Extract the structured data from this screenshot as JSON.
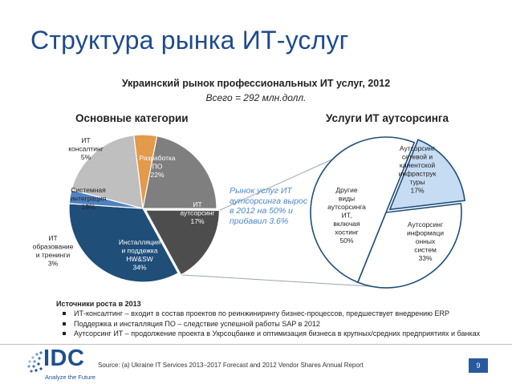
{
  "title": "Структура рынка ИТ-услуг",
  "subtitle": "Украинский рынок профессиональных ИТ услуг, 2012",
  "subtitle2": "Всего = 292 млн.долл.",
  "chart_data": [
    {
      "type": "pie",
      "title": "Основные категории",
      "slices": [
        {
          "label_lines": [
            "Разработка",
            "ПО",
            "22%"
          ],
          "value": 22,
          "color": "#7f7f7f"
        },
        {
          "label_lines": [
            "ИТ",
            "аутсорсинг",
            "17%"
          ],
          "value": 17,
          "color": "#4d4d4d"
        },
        {
          "label_lines": [
            "Инсталляция",
            "и поддежка",
            "HW&SW",
            "34%"
          ],
          "value": 34,
          "color": "#1f4e79"
        },
        {
          "label_lines": [
            "ИТ",
            "образование",
            "и тренинги",
            "3%"
          ],
          "value": 3,
          "color": "#4f81bd"
        },
        {
          "label_lines": [
            "Системная",
            "интеграция",
            "19%"
          ],
          "value": 19,
          "color": "#bfbfbf"
        },
        {
          "label_lines": [
            "ИТ",
            "консалтинг",
            "5%"
          ],
          "value": 5,
          "color": "#e39a4a"
        }
      ]
    },
    {
      "type": "pie",
      "title": "Услуги ИТ аутсорсинга",
      "slices": [
        {
          "label_lines": [
            "Аутсорсинг",
            "сетевой и",
            "клиентской",
            "инфраструк",
            "туры",
            "17%"
          ],
          "value": 17,
          "color": "#c6dcf2"
        },
        {
          "label_lines": [
            "Аутсорсинг",
            "информаци",
            "онных",
            "систем",
            "33%"
          ],
          "value": 33,
          "color": "#ffffff"
        },
        {
          "label_lines": [
            "Другие",
            "виды",
            "аутсорсинга",
            "ИТ,",
            "включая",
            "хостинг",
            "50%"
          ],
          "value": 50,
          "color": "#ffffff"
        }
      ]
    }
  ],
  "note": "Рынок услуг ИТ аутсорсинга вырос в 2012 на 50% и прибавил 3.6%",
  "sources": {
    "header": "Источники роста в 2013",
    "items": [
      "ИТ-консалтинг – входит в состав проектов по реинжинирингу бизнес-процессов, предшествует внедрению ERP",
      "Поддержка и инсталляция ПО – следствие успешной работы SAP в 2012",
      "Аутсорсинг ИТ – продолжение проекта в Укрсоцбанке и оптимизация бизнеса в крупных/средних предприятиях и банках"
    ]
  },
  "source_text": "Source:  (a) Ukraine IT Services 2013–2017 Forecast and 2012 Vendor Shares Annual Report",
  "page_number": "9",
  "logo": {
    "word": "IDC",
    "tagline": "Analyze the Future"
  }
}
